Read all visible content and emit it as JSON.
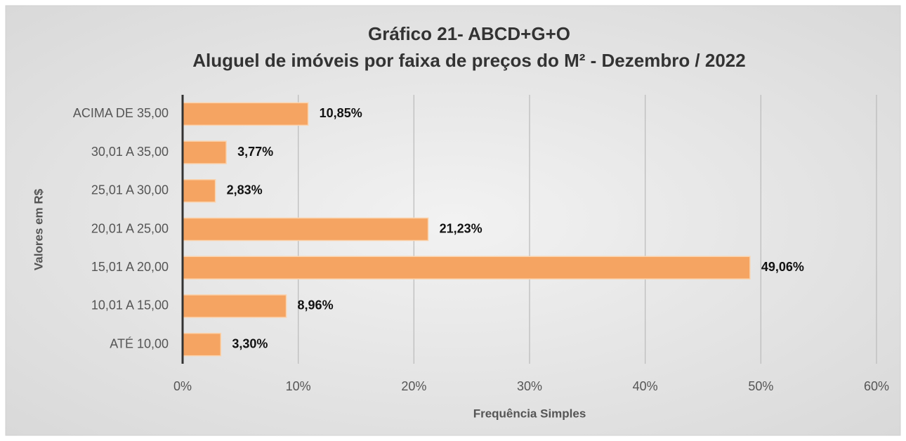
{
  "chart_data": {
    "type": "hbar",
    "title": "Gráfico 21- ABCD+G+O",
    "subtitle": "Aluguel de imóveis por faixa de preços do M² - Dezembro / 2022",
    "x_label": "Frequência Simples",
    "y_label": "Valores em R$",
    "categories": [
      "ACIMA DE 35,00",
      "30,01 A 35,00",
      "25,01 A 30,00",
      "20,01 A 25,00",
      "15,01 A 20,00",
      "10,01 A 15,00",
      "ATÉ 10,00"
    ],
    "values": [
      10.85,
      3.77,
      2.83,
      21.23,
      49.06,
      8.96,
      3.3
    ],
    "value_labels": [
      "10,85%",
      "3,77%",
      "2,83%",
      "21,23%",
      "49,06%",
      "8,96%",
      "3,30%"
    ],
    "color": "#f5a462",
    "xlim": [
      0,
      60
    ],
    "xticks": [
      {
        "value": 0,
        "label": "0%"
      },
      {
        "value": 10,
        "label": "10%"
      },
      {
        "value": 20,
        "label": "20%"
      },
      {
        "value": 30,
        "label": "30%"
      },
      {
        "value": 40,
        "label": "40%"
      },
      {
        "value": 50,
        "label": "50%"
      },
      {
        "value": 60,
        "label": "60%"
      }
    ],
    "grid": true
  }
}
